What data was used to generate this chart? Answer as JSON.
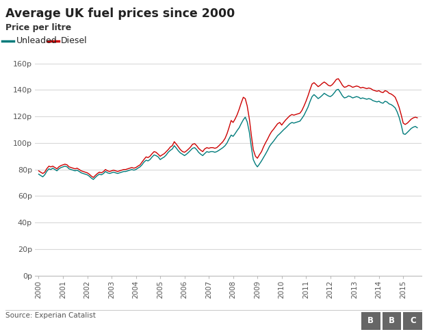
{
  "title": "Average UK fuel prices since 2000",
  "subtitle": "Price per litre",
  "source": "Source: Experian Catalist",
  "unleaded_color": "#007b7b",
  "diesel_color": "#cc0000",
  "background_color": "#ffffff",
  "ylim": [
    0,
    160
  ],
  "yticks": [
    0,
    20,
    40,
    60,
    80,
    100,
    120,
    140,
    160
  ],
  "ytick_labels": [
    "0p",
    "20p",
    "40p",
    "60p",
    "80p",
    "100p",
    "120p",
    "140p",
    "160p"
  ],
  "years": [
    2000,
    2001,
    2002,
    2003,
    2004,
    2005,
    2006,
    2007,
    2008,
    2009,
    2010,
    2011,
    2012,
    2013,
    2014,
    2015
  ],
  "unleaded_data": [
    [
      2000.0,
      76.5
    ],
    [
      2000.08,
      75.5
    ],
    [
      2000.17,
      74.5
    ],
    [
      2000.25,
      76.0
    ],
    [
      2000.33,
      78.5
    ],
    [
      2000.42,
      80.5
    ],
    [
      2000.5,
      80.0
    ],
    [
      2000.58,
      81.0
    ],
    [
      2000.67,
      80.0
    ],
    [
      2000.75,
      79.0
    ],
    [
      2000.83,
      80.5
    ],
    [
      2000.92,
      81.5
    ],
    [
      2001.0,
      82.0
    ],
    [
      2001.08,
      82.5
    ],
    [
      2001.17,
      82.0
    ],
    [
      2001.25,
      80.5
    ],
    [
      2001.33,
      80.0
    ],
    [
      2001.42,
      79.5
    ],
    [
      2001.5,
      79.0
    ],
    [
      2001.58,
      79.5
    ],
    [
      2001.67,
      78.5
    ],
    [
      2001.75,
      77.5
    ],
    [
      2001.83,
      77.0
    ],
    [
      2001.92,
      76.5
    ],
    [
      2002.0,
      76.0
    ],
    [
      2002.08,
      75.0
    ],
    [
      2002.17,
      73.5
    ],
    [
      2002.25,
      72.5
    ],
    [
      2002.33,
      74.0
    ],
    [
      2002.42,
      75.5
    ],
    [
      2002.5,
      76.5
    ],
    [
      2002.58,
      76.0
    ],
    [
      2002.67,
      77.0
    ],
    [
      2002.75,
      78.5
    ],
    [
      2002.83,
      77.5
    ],
    [
      2002.92,
      77.0
    ],
    [
      2003.0,
      77.5
    ],
    [
      2003.08,
      78.0
    ],
    [
      2003.17,
      77.5
    ],
    [
      2003.25,
      77.0
    ],
    [
      2003.33,
      77.5
    ],
    [
      2003.42,
      78.0
    ],
    [
      2003.5,
      78.5
    ],
    [
      2003.58,
      78.5
    ],
    [
      2003.67,
      79.0
    ],
    [
      2003.75,
      79.5
    ],
    [
      2003.83,
      80.0
    ],
    [
      2003.92,
      79.5
    ],
    [
      2004.0,
      80.0
    ],
    [
      2004.08,
      81.0
    ],
    [
      2004.17,
      82.0
    ],
    [
      2004.25,
      83.5
    ],
    [
      2004.33,
      85.5
    ],
    [
      2004.42,
      87.0
    ],
    [
      2004.5,
      86.5
    ],
    [
      2004.58,
      87.5
    ],
    [
      2004.67,
      89.5
    ],
    [
      2004.75,
      91.0
    ],
    [
      2004.83,
      90.5
    ],
    [
      2004.92,
      89.5
    ],
    [
      2005.0,
      87.5
    ],
    [
      2005.08,
      88.5
    ],
    [
      2005.17,
      89.5
    ],
    [
      2005.25,
      91.0
    ],
    [
      2005.33,
      93.0
    ],
    [
      2005.42,
      94.5
    ],
    [
      2005.5,
      95.5
    ],
    [
      2005.58,
      98.0
    ],
    [
      2005.67,
      96.0
    ],
    [
      2005.75,
      94.0
    ],
    [
      2005.83,
      92.5
    ],
    [
      2005.92,
      91.5
    ],
    [
      2006.0,
      90.5
    ],
    [
      2006.08,
      91.5
    ],
    [
      2006.17,
      93.0
    ],
    [
      2006.25,
      94.5
    ],
    [
      2006.33,
      96.0
    ],
    [
      2006.42,
      96.5
    ],
    [
      2006.5,
      95.0
    ],
    [
      2006.58,
      93.0
    ],
    [
      2006.67,
      91.5
    ],
    [
      2006.75,
      90.5
    ],
    [
      2006.83,
      92.0
    ],
    [
      2006.92,
      93.5
    ],
    [
      2007.0,
      93.0
    ],
    [
      2007.08,
      93.5
    ],
    [
      2007.17,
      93.5
    ],
    [
      2007.25,
      93.0
    ],
    [
      2007.33,
      93.5
    ],
    [
      2007.42,
      94.5
    ],
    [
      2007.5,
      95.5
    ],
    [
      2007.58,
      96.5
    ],
    [
      2007.67,
      98.0
    ],
    [
      2007.75,
      100.0
    ],
    [
      2007.83,
      103.0
    ],
    [
      2007.92,
      106.0
    ],
    [
      2008.0,
      105.0
    ],
    [
      2008.08,
      107.0
    ],
    [
      2008.17,
      109.5
    ],
    [
      2008.25,
      111.5
    ],
    [
      2008.33,
      114.5
    ],
    [
      2008.42,
      117.5
    ],
    [
      2008.5,
      119.5
    ],
    [
      2008.58,
      116.0
    ],
    [
      2008.67,
      108.0
    ],
    [
      2008.75,
      97.0
    ],
    [
      2008.83,
      87.5
    ],
    [
      2008.92,
      84.0
    ],
    [
      2009.0,
      82.0
    ],
    [
      2009.08,
      84.0
    ],
    [
      2009.17,
      86.5
    ],
    [
      2009.25,
      89.0
    ],
    [
      2009.33,
      91.5
    ],
    [
      2009.42,
      94.5
    ],
    [
      2009.5,
      97.5
    ],
    [
      2009.58,
      99.5
    ],
    [
      2009.67,
      101.5
    ],
    [
      2009.75,
      103.5
    ],
    [
      2009.83,
      105.5
    ],
    [
      2009.92,
      107.0
    ],
    [
      2010.0,
      108.5
    ],
    [
      2010.08,
      110.0
    ],
    [
      2010.17,
      111.5
    ],
    [
      2010.25,
      113.0
    ],
    [
      2010.33,
      114.5
    ],
    [
      2010.42,
      115.5
    ],
    [
      2010.5,
      115.0
    ],
    [
      2010.58,
      115.5
    ],
    [
      2010.67,
      116.0
    ],
    [
      2010.75,
      116.5
    ],
    [
      2010.83,
      118.5
    ],
    [
      2010.92,
      121.0
    ],
    [
      2011.0,
      124.0
    ],
    [
      2011.08,
      127.0
    ],
    [
      2011.17,
      131.5
    ],
    [
      2011.25,
      135.0
    ],
    [
      2011.33,
      136.5
    ],
    [
      2011.42,
      135.0
    ],
    [
      2011.5,
      133.5
    ],
    [
      2011.58,
      134.5
    ],
    [
      2011.67,
      136.0
    ],
    [
      2011.75,
      137.5
    ],
    [
      2011.83,
      136.5
    ],
    [
      2011.92,
      135.5
    ],
    [
      2012.0,
      135.0
    ],
    [
      2012.08,
      136.0
    ],
    [
      2012.17,
      138.0
    ],
    [
      2012.25,
      140.0
    ],
    [
      2012.33,
      140.5
    ],
    [
      2012.42,
      138.0
    ],
    [
      2012.5,
      135.5
    ],
    [
      2012.58,
      134.0
    ],
    [
      2012.67,
      134.5
    ],
    [
      2012.75,
      135.5
    ],
    [
      2012.83,
      135.0
    ],
    [
      2012.92,
      134.0
    ],
    [
      2013.0,
      134.5
    ],
    [
      2013.08,
      135.0
    ],
    [
      2013.17,
      134.5
    ],
    [
      2013.25,
      133.5
    ],
    [
      2013.33,
      134.0
    ],
    [
      2013.42,
      133.5
    ],
    [
      2013.5,
      133.0
    ],
    [
      2013.58,
      133.5
    ],
    [
      2013.67,
      133.0
    ],
    [
      2013.75,
      132.0
    ],
    [
      2013.83,
      131.5
    ],
    [
      2013.92,
      131.0
    ],
    [
      2014.0,
      131.5
    ],
    [
      2014.08,
      130.5
    ],
    [
      2014.17,
      130.0
    ],
    [
      2014.25,
      131.5
    ],
    [
      2014.33,
      131.0
    ],
    [
      2014.42,
      129.5
    ],
    [
      2014.5,
      129.0
    ],
    [
      2014.58,
      128.0
    ],
    [
      2014.67,
      126.5
    ],
    [
      2014.75,
      123.5
    ],
    [
      2014.83,
      119.5
    ],
    [
      2014.92,
      113.5
    ],
    [
      2015.0,
      107.0
    ],
    [
      2015.08,
      106.5
    ],
    [
      2015.17,
      108.0
    ],
    [
      2015.25,
      109.5
    ],
    [
      2015.33,
      111.0
    ],
    [
      2015.42,
      112.0
    ],
    [
      2015.5,
      112.5
    ],
    [
      2015.58,
      111.5
    ]
  ],
  "diesel_data": [
    [
      2000.0,
      79.0
    ],
    [
      2000.08,
      78.0
    ],
    [
      2000.17,
      77.0
    ],
    [
      2000.25,
      78.0
    ],
    [
      2000.33,
      80.5
    ],
    [
      2000.42,
      82.5
    ],
    [
      2000.5,
      82.0
    ],
    [
      2000.58,
      82.5
    ],
    [
      2000.67,
      81.5
    ],
    [
      2000.75,
      80.5
    ],
    [
      2000.83,
      82.0
    ],
    [
      2000.92,
      83.0
    ],
    [
      2001.0,
      83.5
    ],
    [
      2001.08,
      84.0
    ],
    [
      2001.17,
      83.5
    ],
    [
      2001.25,
      82.0
    ],
    [
      2001.33,
      81.5
    ],
    [
      2001.42,
      81.0
    ],
    [
      2001.5,
      80.5
    ],
    [
      2001.58,
      81.0
    ],
    [
      2001.67,
      80.0
    ],
    [
      2001.75,
      79.0
    ],
    [
      2001.83,
      78.5
    ],
    [
      2001.92,
      78.0
    ],
    [
      2002.0,
      77.5
    ],
    [
      2002.08,
      76.5
    ],
    [
      2002.17,
      75.0
    ],
    [
      2002.25,
      74.0
    ],
    [
      2002.33,
      75.5
    ],
    [
      2002.42,
      77.0
    ],
    [
      2002.5,
      78.0
    ],
    [
      2002.58,
      77.5
    ],
    [
      2002.67,
      78.5
    ],
    [
      2002.75,
      80.0
    ],
    [
      2002.83,
      79.0
    ],
    [
      2002.92,
      78.5
    ],
    [
      2003.0,
      79.0
    ],
    [
      2003.08,
      79.5
    ],
    [
      2003.17,
      79.0
    ],
    [
      2003.25,
      78.5
    ],
    [
      2003.33,
      79.0
    ],
    [
      2003.42,
      79.5
    ],
    [
      2003.5,
      80.0
    ],
    [
      2003.58,
      80.0
    ],
    [
      2003.67,
      80.5
    ],
    [
      2003.75,
      81.0
    ],
    [
      2003.83,
      81.5
    ],
    [
      2003.92,
      81.0
    ],
    [
      2004.0,
      81.5
    ],
    [
      2004.08,
      82.5
    ],
    [
      2004.17,
      83.5
    ],
    [
      2004.25,
      85.5
    ],
    [
      2004.33,
      87.5
    ],
    [
      2004.42,
      89.5
    ],
    [
      2004.5,
      89.0
    ],
    [
      2004.58,
      90.0
    ],
    [
      2004.67,
      92.0
    ],
    [
      2004.75,
      93.5
    ],
    [
      2004.83,
      93.0
    ],
    [
      2004.92,
      91.5
    ],
    [
      2005.0,
      90.0
    ],
    [
      2005.08,
      91.0
    ],
    [
      2005.17,
      92.0
    ],
    [
      2005.25,
      93.5
    ],
    [
      2005.33,
      95.0
    ],
    [
      2005.42,
      97.0
    ],
    [
      2005.5,
      98.0
    ],
    [
      2005.58,
      101.0
    ],
    [
      2005.67,
      99.0
    ],
    [
      2005.75,
      97.0
    ],
    [
      2005.83,
      95.0
    ],
    [
      2005.92,
      93.5
    ],
    [
      2006.0,
      93.0
    ],
    [
      2006.08,
      94.0
    ],
    [
      2006.17,
      95.5
    ],
    [
      2006.25,
      97.0
    ],
    [
      2006.33,
      99.0
    ],
    [
      2006.42,
      99.5
    ],
    [
      2006.5,
      98.0
    ],
    [
      2006.58,
      96.0
    ],
    [
      2006.67,
      94.5
    ],
    [
      2006.75,
      93.5
    ],
    [
      2006.83,
      95.5
    ],
    [
      2006.92,
      96.5
    ],
    [
      2007.0,
      96.0
    ],
    [
      2007.08,
      96.5
    ],
    [
      2007.17,
      96.5
    ],
    [
      2007.25,
      96.0
    ],
    [
      2007.33,
      96.5
    ],
    [
      2007.42,
      98.0
    ],
    [
      2007.5,
      99.5
    ],
    [
      2007.58,
      101.0
    ],
    [
      2007.67,
      103.5
    ],
    [
      2007.75,
      107.0
    ],
    [
      2007.83,
      111.5
    ],
    [
      2007.92,
      117.0
    ],
    [
      2008.0,
      115.5
    ],
    [
      2008.08,
      118.0
    ],
    [
      2008.17,
      121.5
    ],
    [
      2008.25,
      125.5
    ],
    [
      2008.33,
      130.0
    ],
    [
      2008.42,
      134.5
    ],
    [
      2008.5,
      133.5
    ],
    [
      2008.58,
      128.0
    ],
    [
      2008.67,
      118.0
    ],
    [
      2008.75,
      106.0
    ],
    [
      2008.83,
      95.0
    ],
    [
      2008.92,
      90.0
    ],
    [
      2009.0,
      88.5
    ],
    [
      2009.08,
      91.0
    ],
    [
      2009.17,
      93.5
    ],
    [
      2009.25,
      97.0
    ],
    [
      2009.33,
      100.0
    ],
    [
      2009.42,
      103.0
    ],
    [
      2009.5,
      106.0
    ],
    [
      2009.58,
      108.5
    ],
    [
      2009.67,
      110.5
    ],
    [
      2009.75,
      112.5
    ],
    [
      2009.83,
      114.5
    ],
    [
      2009.92,
      115.5
    ],
    [
      2010.0,
      113.5
    ],
    [
      2010.08,
      115.5
    ],
    [
      2010.17,
      117.5
    ],
    [
      2010.25,
      119.0
    ],
    [
      2010.33,
      120.5
    ],
    [
      2010.42,
      121.5
    ],
    [
      2010.5,
      121.0
    ],
    [
      2010.58,
      121.5
    ],
    [
      2010.67,
      122.0
    ],
    [
      2010.75,
      122.5
    ],
    [
      2010.83,
      124.5
    ],
    [
      2010.92,
      128.0
    ],
    [
      2011.0,
      131.5
    ],
    [
      2011.08,
      135.5
    ],
    [
      2011.17,
      140.5
    ],
    [
      2011.25,
      144.5
    ],
    [
      2011.33,
      145.5
    ],
    [
      2011.42,
      144.0
    ],
    [
      2011.5,
      142.5
    ],
    [
      2011.58,
      143.5
    ],
    [
      2011.67,
      145.0
    ],
    [
      2011.75,
      146.0
    ],
    [
      2011.83,
      145.0
    ],
    [
      2011.92,
      143.5
    ],
    [
      2012.0,
      143.0
    ],
    [
      2012.08,
      144.0
    ],
    [
      2012.17,
      146.0
    ],
    [
      2012.25,
      148.0
    ],
    [
      2012.33,
      148.5
    ],
    [
      2012.42,
      146.0
    ],
    [
      2012.5,
      143.5
    ],
    [
      2012.58,
      142.0
    ],
    [
      2012.67,
      142.5
    ],
    [
      2012.75,
      143.5
    ],
    [
      2012.83,
      143.0
    ],
    [
      2012.92,
      142.0
    ],
    [
      2013.0,
      142.5
    ],
    [
      2013.08,
      143.0
    ],
    [
      2013.17,
      142.5
    ],
    [
      2013.25,
      141.5
    ],
    [
      2013.33,
      142.0
    ],
    [
      2013.42,
      141.5
    ],
    [
      2013.5,
      141.0
    ],
    [
      2013.58,
      141.5
    ],
    [
      2013.67,
      141.0
    ],
    [
      2013.75,
      140.0
    ],
    [
      2013.83,
      139.5
    ],
    [
      2013.92,
      139.0
    ],
    [
      2014.0,
      139.5
    ],
    [
      2014.08,
      138.5
    ],
    [
      2014.17,
      138.0
    ],
    [
      2014.25,
      139.5
    ],
    [
      2014.33,
      139.0
    ],
    [
      2014.42,
      137.5
    ],
    [
      2014.5,
      137.0
    ],
    [
      2014.58,
      136.0
    ],
    [
      2014.67,
      134.5
    ],
    [
      2014.75,
      131.0
    ],
    [
      2014.83,
      127.0
    ],
    [
      2014.92,
      121.0
    ],
    [
      2015.0,
      115.0
    ],
    [
      2015.08,
      114.0
    ],
    [
      2015.17,
      115.0
    ],
    [
      2015.25,
      116.5
    ],
    [
      2015.33,
      118.0
    ],
    [
      2015.42,
      119.0
    ],
    [
      2015.5,
      119.5
    ],
    [
      2015.58,
      119.0
    ]
  ]
}
